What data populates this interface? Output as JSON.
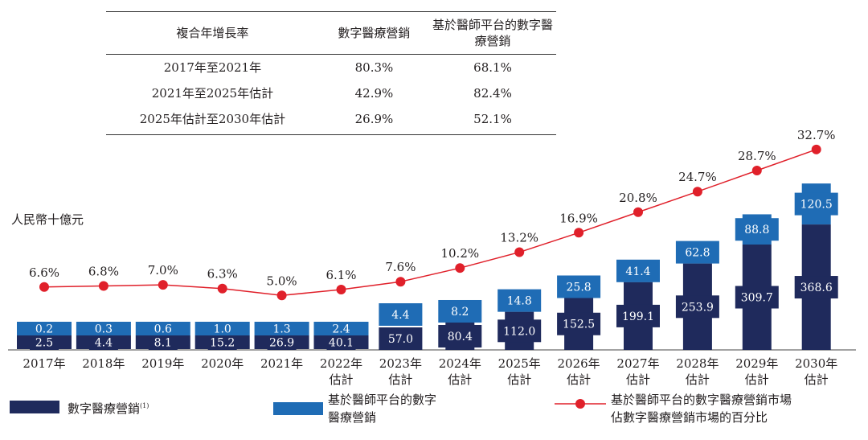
{
  "table": {
    "headers": [
      "複合年增長率",
      "數字醫療營銷",
      "基於醫師平台的數字醫療營銷"
    ],
    "rows": [
      [
        "2017年至2021年",
        "80.3%",
        "68.1%"
      ],
      [
        "2021年至2025年估計",
        "42.9%",
        "82.4%"
      ],
      [
        "2025年估計至2030年估計",
        "26.9%",
        "52.1%"
      ]
    ]
  },
  "chart_data": {
    "type": "bar",
    "ylabel": "人民幣十億元",
    "categories": [
      "2017年",
      "2018年",
      "2019年",
      "2020年",
      "2021年",
      "2022年\n估計",
      "2023年\n估計",
      "2024年\n估計",
      "2025年\n估計",
      "2026年\n估計",
      "2027年\n估計",
      "2028年\n估計",
      "2029年\n估計",
      "2030年\n估計"
    ],
    "series": [
      {
        "name": "數字醫療營銷",
        "note": "(1)",
        "color": "#1f2a5c",
        "values": [
          2.5,
          4.4,
          8.1,
          15.2,
          26.9,
          40.1,
          57.0,
          80.4,
          112.0,
          152.5,
          199.1,
          253.9,
          309.7,
          368.6
        ]
      },
      {
        "name": "基於醫師平台的數字醫療營銷",
        "color": "#1f6cb5",
        "values": [
          0.2,
          0.3,
          0.6,
          1.0,
          1.3,
          2.4,
          4.4,
          8.2,
          14.8,
          25.8,
          41.4,
          62.8,
          88.8,
          120.5
        ]
      },
      {
        "name": "基於醫師平台的數字醫療營銷市場佔數字醫療營銷市場的百分比",
        "type": "line",
        "color": "#e0202a",
        "values": [
          6.6,
          6.8,
          7.0,
          6.3,
          5.0,
          6.1,
          7.6,
          10.2,
          13.2,
          16.9,
          20.8,
          24.7,
          28.7,
          32.7
        ],
        "labels": [
          "6.6%",
          "6.8%",
          "7.0%",
          "6.3%",
          "5.0%",
          "6.1%",
          "7.6%",
          "10.2%",
          "13.2%",
          "16.9%",
          "20.8%",
          "24.7%",
          "28.7%",
          "32.7%"
        ]
      }
    ]
  },
  "legend": {
    "dark": "數字醫療營銷",
    "dark_note": "(1)",
    "light_1": "基於醫師平台的數字",
    "light_2": "醫療營銷",
    "line_1": "基於醫師平台的數字醫療營銷市場",
    "line_2": "佔數字醫療營銷市場的百分比"
  }
}
